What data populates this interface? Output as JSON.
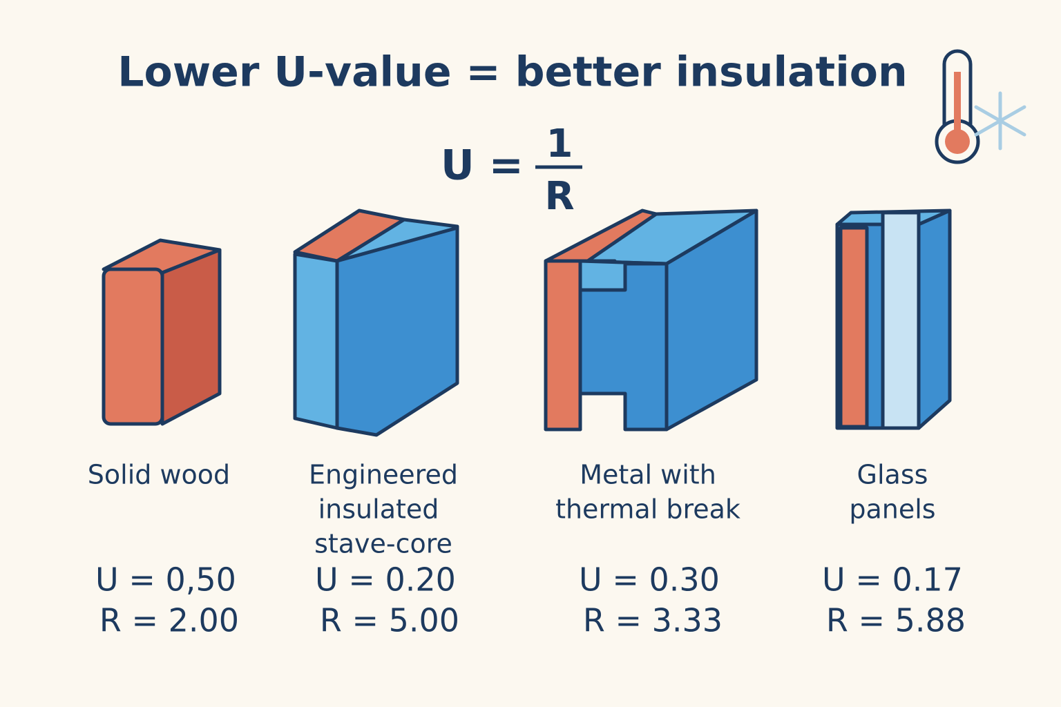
{
  "title": "Lower U-value = better insulation",
  "formula": {
    "lhs": "U =",
    "numerator": "1",
    "denominator": "R"
  },
  "items": [
    {
      "label": [
        "Solid wood"
      ],
      "u": "U = 0,50",
      "r": "R = 2.00"
    },
    {
      "label": [
        "Engineered",
        "insulated",
        "stave-core"
      ],
      "u": "U = 0.20",
      "r": "R = 5.00"
    },
    {
      "label": [
        "Metal with",
        "thermal break"
      ],
      "u": "U = 0.30",
      "r": "R = 3.33"
    },
    {
      "label": [
        "Glass",
        "panels"
      ],
      "u": "U = 0.17",
      "r": "R = 5.88"
    }
  ]
}
